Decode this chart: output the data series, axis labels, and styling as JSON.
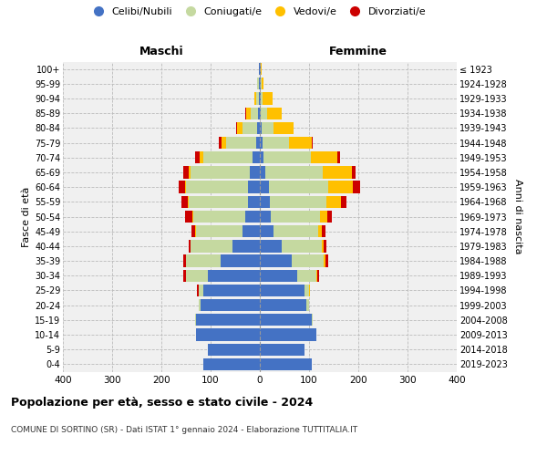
{
  "age_groups": [
    "0-4",
    "5-9",
    "10-14",
    "15-19",
    "20-24",
    "25-29",
    "30-34",
    "35-39",
    "40-44",
    "45-49",
    "50-54",
    "55-59",
    "60-64",
    "65-69",
    "70-74",
    "75-79",
    "80-84",
    "85-89",
    "90-94",
    "95-99",
    "100+"
  ],
  "birth_years": [
    "2019-2023",
    "2014-2018",
    "2009-2013",
    "2004-2008",
    "1999-2003",
    "1994-1998",
    "1989-1993",
    "1984-1988",
    "1979-1983",
    "1974-1978",
    "1969-1973",
    "1964-1968",
    "1959-1963",
    "1954-1958",
    "1949-1953",
    "1944-1948",
    "1939-1943",
    "1934-1938",
    "1929-1933",
    "1924-1928",
    "≤ 1923"
  ],
  "maschi_celibi": [
    115,
    105,
    130,
    130,
    120,
    115,
    105,
    80,
    55,
    35,
    30,
    25,
    25,
    20,
    15,
    8,
    5,
    3,
    2,
    2,
    1
  ],
  "maschi_coniugati": [
    0,
    0,
    0,
    2,
    5,
    10,
    45,
    70,
    85,
    95,
    105,
    120,
    125,
    120,
    100,
    60,
    30,
    15,
    5,
    3,
    1
  ],
  "maschi_vedovi": [
    0,
    0,
    0,
    0,
    0,
    0,
    0,
    0,
    0,
    1,
    2,
    2,
    2,
    5,
    8,
    10,
    12,
    10,
    5,
    1,
    0
  ],
  "maschi_divorziati": [
    0,
    0,
    0,
    0,
    0,
    2,
    5,
    5,
    5,
    8,
    15,
    12,
    12,
    10,
    8,
    5,
    2,
    1,
    0,
    0,
    0
  ],
  "femmine_nubili": [
    105,
    90,
    115,
    105,
    95,
    90,
    75,
    65,
    45,
    28,
    22,
    20,
    18,
    12,
    8,
    5,
    3,
    2,
    1,
    1,
    1
  ],
  "femmine_coniugate": [
    0,
    0,
    0,
    2,
    5,
    10,
    40,
    65,
    80,
    90,
    100,
    115,
    120,
    115,
    95,
    55,
    25,
    12,
    5,
    2,
    1
  ],
  "femmine_vedove": [
    0,
    0,
    0,
    0,
    0,
    1,
    2,
    3,
    5,
    8,
    15,
    30,
    50,
    60,
    55,
    45,
    40,
    30,
    20,
    5,
    1
  ],
  "femmine_divorziate": [
    0,
    0,
    0,
    0,
    0,
    1,
    3,
    5,
    5,
    8,
    10,
    10,
    15,
    8,
    5,
    2,
    1,
    1,
    0,
    0,
    0
  ],
  "colors_celibi": "#4472c4",
  "colors_coniugati": "#c5d9a0",
  "colors_vedovi": "#ffc000",
  "colors_divorziati": "#cc0000",
  "xlim": 400,
  "title": "Popolazione per età, sesso e stato civile - 2024",
  "subtitle": "COMUNE DI SORTINO (SR) - Dati ISTAT 1° gennaio 2024 - Elaborazione TUTTITALIA.IT",
  "header_maschi": "Maschi",
  "header_femmine": "Femmine",
  "ylabel_left": "Fasce di età",
  "ylabel_right": "Anni di nascita",
  "legend_labels": [
    "Celibi/Nubili",
    "Coniugati/e",
    "Vedovi/e",
    "Divorziati/e"
  ]
}
